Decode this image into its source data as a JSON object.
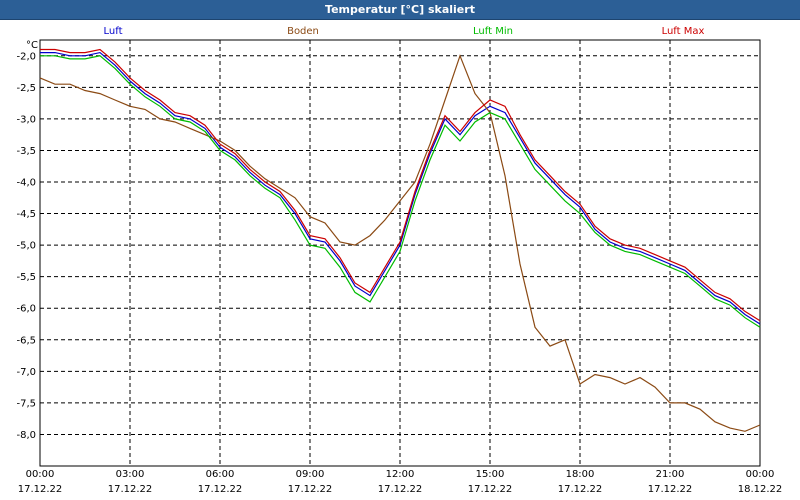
{
  "window": {
    "title": "Temperatur [°C] skaliert"
  },
  "chart_data": {
    "type": "line",
    "title": "Temperatur [°C] skaliert",
    "ylabel": "°C",
    "ylim": [
      -8.5,
      -1.75
    ],
    "xlim": [
      0,
      24
    ],
    "grid": true,
    "legend_position": "top",
    "y_ticks": [
      -2.0,
      -2.5,
      -3.0,
      -3.5,
      -4.0,
      -4.5,
      -5.0,
      -5.5,
      -6.0,
      -6.5,
      -7.0,
      -7.5,
      -8.0
    ],
    "y_tick_labels": [
      "-2,0",
      "-2,5",
      "-3,0",
      "-3,5",
      "-4,0",
      "-4,5",
      "-5,0",
      "-5,5",
      "-6,0",
      "-6,5",
      "-7,0",
      "-7,5",
      "-8,0"
    ],
    "x_ticks": [
      {
        "h": 0,
        "time": "00:00",
        "date": "17.12.22"
      },
      {
        "h": 3,
        "time": "03:00",
        "date": "17.12.22"
      },
      {
        "h": 6,
        "time": "06:00",
        "date": "17.12.22"
      },
      {
        "h": 9,
        "time": "09:00",
        "date": "17.12.22"
      },
      {
        "h": 12,
        "time": "12:00",
        "date": "17.12.22"
      },
      {
        "h": 15,
        "time": "15:00",
        "date": "17.12.22"
      },
      {
        "h": 18,
        "time": "18:00",
        "date": "17.12.22"
      },
      {
        "h": 21,
        "time": "21:00",
        "date": "17.12.22"
      },
      {
        "h": 24,
        "time": "00:00",
        "date": "18.12.22"
      }
    ],
    "x": [
      0,
      0.5,
      1,
      1.5,
      2,
      2.5,
      3,
      3.5,
      4,
      4.5,
      5,
      5.5,
      6,
      6.5,
      7,
      7.5,
      8,
      8.5,
      9,
      9.5,
      10,
      10.5,
      11,
      11.5,
      12,
      12.5,
      13,
      13.5,
      14,
      14.5,
      15,
      15.5,
      16,
      16.5,
      17,
      17.5,
      18,
      18.5,
      19,
      19.5,
      20,
      20.5,
      21,
      21.5,
      22,
      22.5,
      23,
      23.5,
      24
    ],
    "series": [
      {
        "name": "Luft",
        "color": "#0000cc",
        "values": [
          -1.95,
          -1.95,
          -2.0,
          -2.0,
          -1.95,
          -2.15,
          -2.4,
          -2.6,
          -2.75,
          -2.95,
          -3.0,
          -3.15,
          -3.45,
          -3.6,
          -3.85,
          -4.05,
          -4.2,
          -4.5,
          -4.9,
          -4.95,
          -5.25,
          -5.65,
          -5.8,
          -5.4,
          -5.0,
          -4.2,
          -3.55,
          -3.0,
          -3.25,
          -2.95,
          -2.8,
          -2.9,
          -3.3,
          -3.7,
          -3.95,
          -4.2,
          -4.4,
          -4.75,
          -4.95,
          -5.05,
          -5.1,
          -5.2,
          -5.3,
          -5.4,
          -5.6,
          -5.8,
          -5.9,
          -6.1,
          -6.25
        ]
      },
      {
        "name": "Boden",
        "color": "#8b4a14",
        "values": [
          -2.35,
          -2.45,
          -2.45,
          -2.55,
          -2.6,
          -2.7,
          -2.8,
          -2.85,
          -3.0,
          -3.05,
          -3.15,
          -3.25,
          -3.35,
          -3.5,
          -3.75,
          -3.95,
          -4.1,
          -4.25,
          -4.55,
          -4.65,
          -4.95,
          -5.0,
          -4.85,
          -4.6,
          -4.3,
          -4.0,
          -3.4,
          -2.7,
          -2.0,
          -2.6,
          -2.9,
          -3.9,
          -5.3,
          -6.3,
          -6.6,
          -6.5,
          -7.2,
          -7.05,
          -7.1,
          -7.2,
          -7.1,
          -7.25,
          -7.5,
          -7.5,
          -7.6,
          -7.8,
          -7.9,
          -7.95,
          -7.85
        ]
      },
      {
        "name": "Luft Min",
        "color": "#00bb00",
        "values": [
          -2.0,
          -2.0,
          -2.05,
          -2.05,
          -2.0,
          -2.2,
          -2.45,
          -2.65,
          -2.8,
          -3.0,
          -3.05,
          -3.2,
          -3.5,
          -3.65,
          -3.9,
          -4.1,
          -4.25,
          -4.6,
          -5.0,
          -5.05,
          -5.35,
          -5.75,
          -5.9,
          -5.5,
          -5.1,
          -4.3,
          -3.65,
          -3.1,
          -3.35,
          -3.05,
          -2.9,
          -3.0,
          -3.4,
          -3.8,
          -4.05,
          -4.3,
          -4.5,
          -4.8,
          -5.0,
          -5.1,
          -5.15,
          -5.25,
          -5.35,
          -5.45,
          -5.65,
          -5.85,
          -5.95,
          -6.15,
          -6.3
        ]
      },
      {
        "name": "Luft Max",
        "color": "#cc0000",
        "values": [
          -1.9,
          -1.9,
          -1.95,
          -1.95,
          -1.9,
          -2.1,
          -2.35,
          -2.55,
          -2.7,
          -2.9,
          -2.95,
          -3.1,
          -3.4,
          -3.55,
          -3.8,
          -4.0,
          -4.15,
          -4.45,
          -4.85,
          -4.9,
          -5.2,
          -5.6,
          -5.75,
          -5.35,
          -4.95,
          -4.15,
          -3.5,
          -2.95,
          -3.2,
          -2.9,
          -2.7,
          -2.8,
          -3.25,
          -3.65,
          -3.9,
          -4.15,
          -4.35,
          -4.7,
          -4.9,
          -5.0,
          -5.05,
          -5.15,
          -5.25,
          -5.35,
          -5.55,
          -5.75,
          -5.85,
          -6.05,
          -6.2
        ]
      }
    ]
  }
}
